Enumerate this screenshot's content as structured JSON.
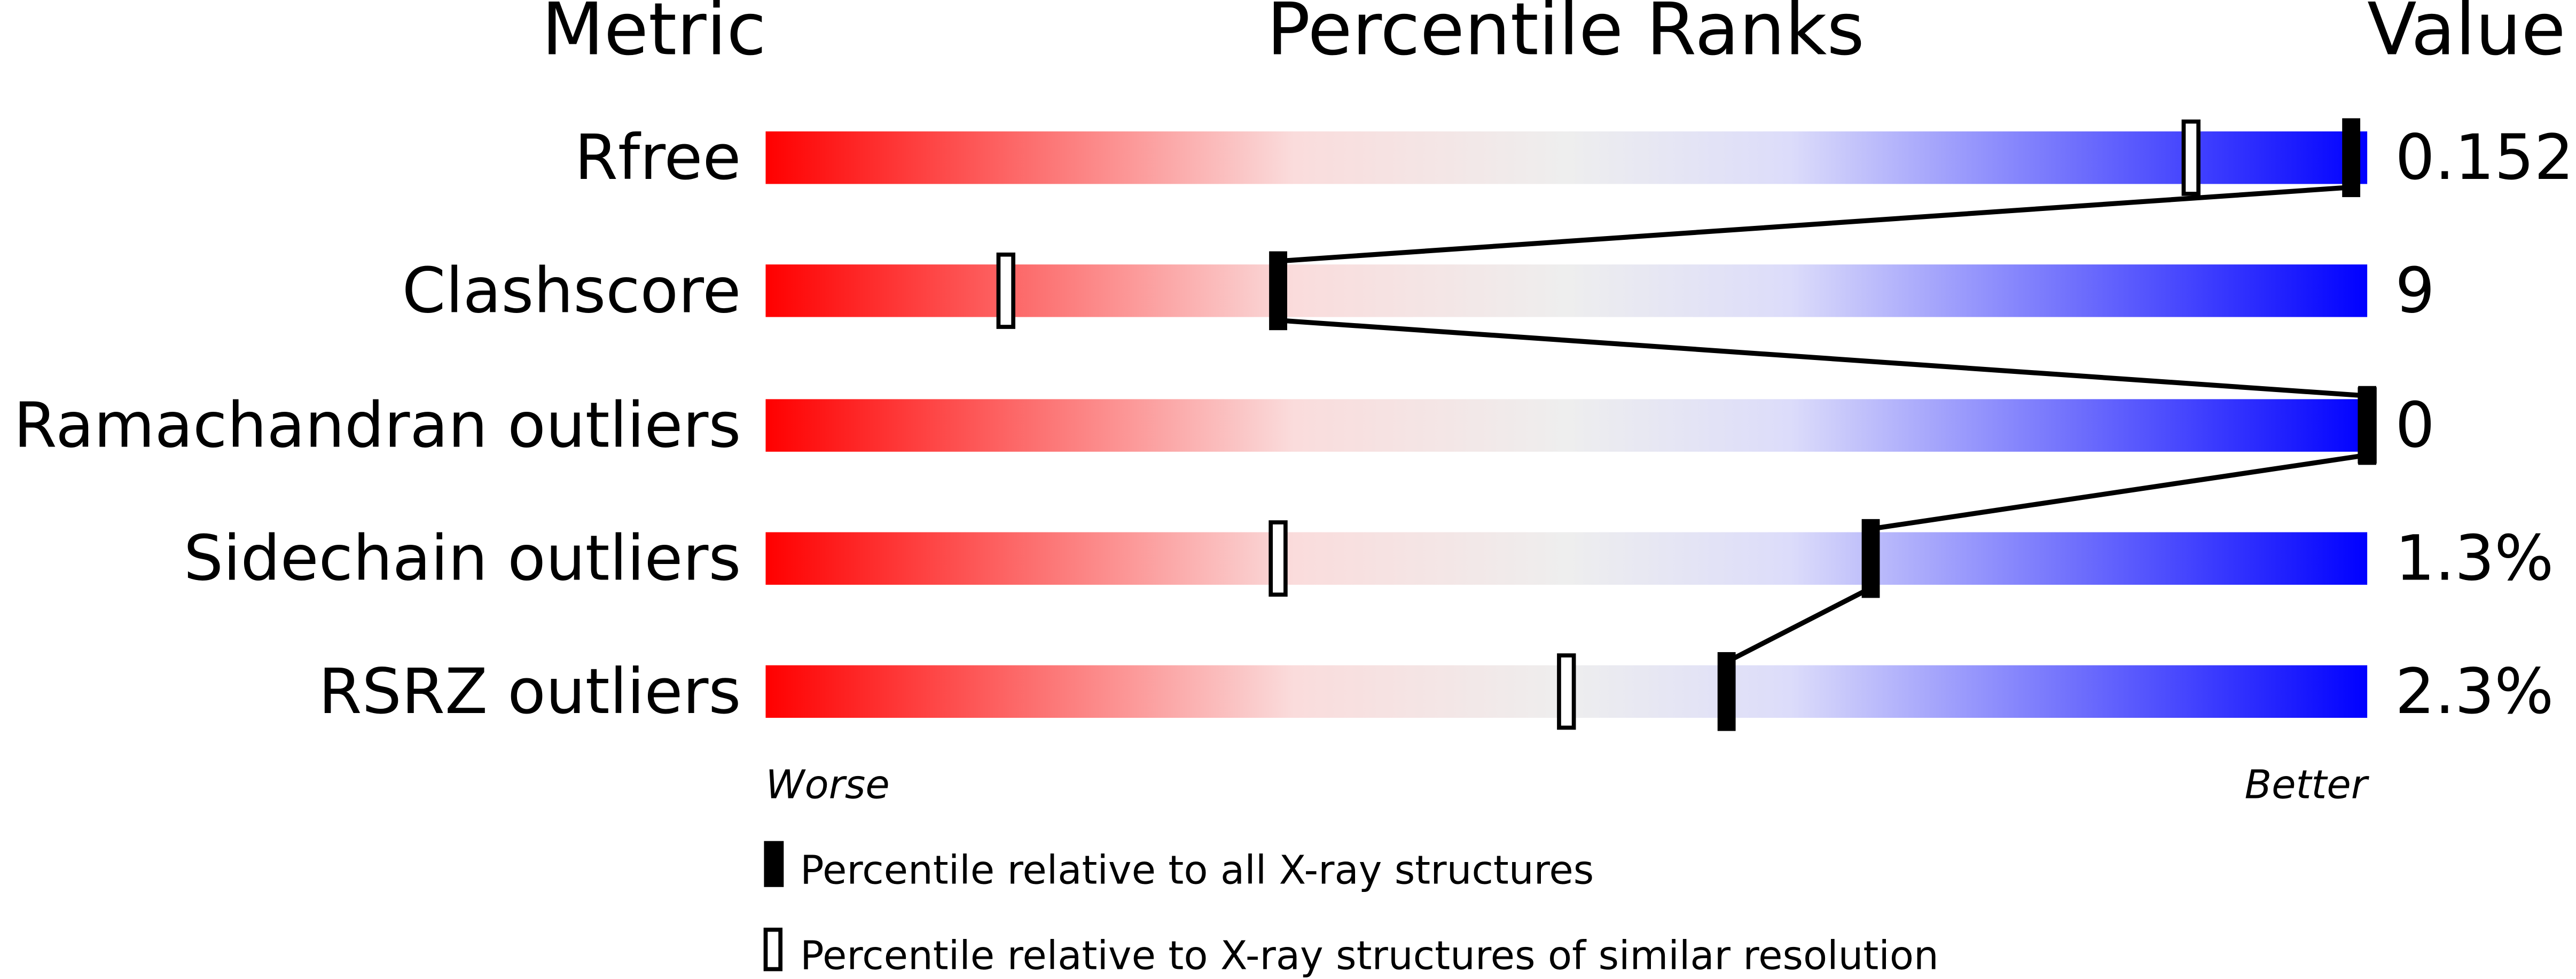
{
  "chart_data": {
    "type": "slider",
    "headers": {
      "metric": "Metric",
      "ranks": "Percentile Ranks",
      "value": "Value"
    },
    "xlim": [
      0,
      100
    ],
    "metrics": [
      {
        "name": "Rfree",
        "value": "0.152",
        "percentile_all": 99,
        "percentile_similar": 89
      },
      {
        "name": "Clashscore",
        "value": "9",
        "percentile_all": 32,
        "percentile_similar": 15
      },
      {
        "name": "Ramachandran outliers",
        "value": "0",
        "percentile_all": 100,
        "percentile_similar": 100
      },
      {
        "name": "Sidechain outliers",
        "value": "1.3%",
        "percentile_all": 69,
        "percentile_similar": 32
      },
      {
        "name": "RSRZ outliers",
        "value": "2.3%",
        "percentile_all": 60,
        "percentile_similar": 50
      }
    ],
    "axis_labels": {
      "worse": "Worse",
      "better": "Better"
    },
    "legend": [
      {
        "marker": "filled",
        "label": "Percentile relative to all X-ray structures"
      },
      {
        "marker": "open",
        "label": "Percentile relative to X-ray structures of similar resolution"
      }
    ],
    "gradient_colors": [
      "#ff0000",
      "#fadcdc",
      "#eeeeee",
      "#dcdcfa",
      "#0000ff"
    ]
  }
}
